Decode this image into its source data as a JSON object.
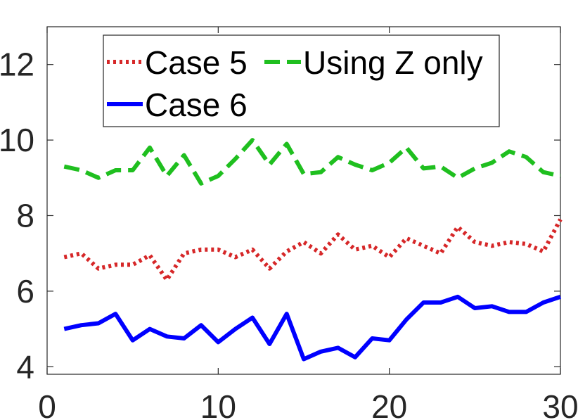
{
  "chart_data": {
    "type": "line",
    "title": "",
    "xlabel": "",
    "ylabel": "",
    "xlim": [
      0,
      30
    ],
    "ylim": [
      3.8,
      13
    ],
    "xticks": [
      0,
      10,
      20,
      30
    ],
    "yticks": [
      4,
      6,
      8,
      10,
      12
    ],
    "grid": false,
    "legend_position": "top",
    "x": [
      1,
      2,
      3,
      4,
      5,
      6,
      7,
      8,
      9,
      10,
      11,
      12,
      13,
      14,
      15,
      16,
      17,
      18,
      19,
      20,
      21,
      22,
      23,
      24,
      25,
      26,
      27,
      28,
      29,
      30
    ],
    "series": [
      {
        "name": "Case 5",
        "color": "#d62728",
        "line_style": "dotted",
        "values": [
          6.9,
          7.0,
          6.6,
          6.7,
          6.7,
          6.95,
          6.3,
          7.0,
          7.1,
          7.1,
          6.9,
          7.1,
          6.6,
          7.05,
          7.3,
          7.0,
          7.5,
          7.1,
          7.2,
          6.9,
          7.4,
          7.2,
          7.0,
          7.7,
          7.3,
          7.2,
          7.3,
          7.25,
          7.05,
          7.9
        ]
      },
      {
        "name": "Using Z only",
        "color": "#1fbf1f",
        "line_style": "dashed",
        "values": [
          9.3,
          9.2,
          9.0,
          9.2,
          9.2,
          9.8,
          9.05,
          9.6,
          8.85,
          9.05,
          9.5,
          10.0,
          9.35,
          9.9,
          9.1,
          9.15,
          9.55,
          9.35,
          9.2,
          9.4,
          9.8,
          9.25,
          9.3,
          9.0,
          9.25,
          9.4,
          9.7,
          9.55,
          9.15,
          9.05
        ]
      },
      {
        "name": "Case 6",
        "color": "#0000ff",
        "line_style": "solid",
        "values": [
          5.0,
          5.1,
          5.15,
          5.4,
          4.7,
          5.0,
          4.8,
          4.75,
          5.1,
          4.65,
          5.0,
          5.3,
          4.6,
          5.4,
          4.2,
          4.4,
          4.5,
          4.25,
          4.75,
          4.7,
          5.25,
          5.7,
          5.7,
          5.85,
          5.55,
          5.6,
          5.45,
          5.45,
          5.7,
          5.85
        ]
      }
    ],
    "legend": {
      "rows": [
        [
          "Case 5",
          "Using Z only"
        ],
        [
          "Case 6"
        ]
      ]
    }
  }
}
